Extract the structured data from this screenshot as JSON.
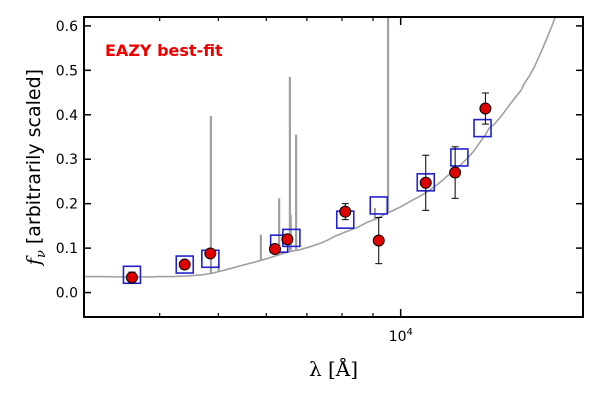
{
  "chart_data": {
    "type": "scatter",
    "title": "",
    "annotation": "EAZY best-fit",
    "annotation_color": "#ee0000",
    "xlabel": "λ [Å]",
    "ylabel_math": "f",
    "ylabel_sub": "ν",
    "ylabel_text": "[arbitrarily scaled]",
    "x_scale": "log",
    "xlim": [
      3000,
      20000
    ],
    "ylim": [
      -0.055,
      0.62
    ],
    "y_ticks": [
      0.0,
      0.1,
      0.2,
      0.3,
      0.4,
      0.5,
      0.6
    ],
    "y_tick_labels": [
      "0.0",
      "0.1",
      "0.2",
      "0.3",
      "0.4",
      "0.5",
      "0.6"
    ],
    "x_major_tick": 10000,
    "x_tick_label_base": "10",
    "x_tick_label_exp": "4",
    "grid": false,
    "series": [
      {
        "kind": "template",
        "color": "#a0a0a0",
        "x": [
          3000,
          3200,
          3500,
          3800,
          4000,
          4200,
          4400,
          4500,
          4700,
          4900,
          5100,
          5300,
          5500,
          5800,
          6000,
          6200,
          6400,
          6600,
          6800,
          7000,
          7200,
          7400,
          7600,
          7800,
          8000,
          8200,
          8500,
          8800,
          9000,
          9200,
          9400,
          9600,
          9800,
          10000,
          10300,
          10600,
          10900,
          11200,
          11500,
          11800,
          12000,
          12300,
          12600,
          12900,
          13200,
          13500,
          13800,
          14000,
          14300,
          14600,
          14900,
          15200,
          15500,
          15800,
          16000,
          16300,
          16600,
          16900,
          17200,
          17500,
          17800,
          18000
        ],
        "y": [
          0.036,
          0.036,
          0.035,
          0.035,
          0.036,
          0.036,
          0.037,
          0.038,
          0.04,
          0.044,
          0.05,
          0.056,
          0.062,
          0.07,
          0.076,
          0.082,
          0.088,
          0.093,
          0.096,
          0.101,
          0.106,
          0.112,
          0.119,
          0.127,
          0.133,
          0.139,
          0.147,
          0.158,
          0.163,
          0.168,
          0.176,
          0.181,
          0.187,
          0.193,
          0.203,
          0.212,
          0.221,
          0.232,
          0.243,
          0.256,
          0.265,
          0.276,
          0.289,
          0.303,
          0.318,
          0.337,
          0.355,
          0.37,
          0.38,
          0.394,
          0.41,
          0.426,
          0.441,
          0.455,
          0.47,
          0.487,
          0.506,
          0.529,
          0.553,
          0.578,
          0.602,
          0.62
        ]
      },
      {
        "kind": "emission-lines",
        "color": "#a0a0a0",
        "x": [
          4860,
          4959,
          5007,
          5877,
          6300,
          6563,
          6583,
          6720,
          9069,
          9532
        ],
        "y": [
          0.397,
          0.045,
          0.062,
          0.13,
          0.212,
          0.485,
          0.175,
          0.355,
          0.19,
          0.62
        ]
      },
      {
        "kind": "model-photometry",
        "color": "#2222cc",
        "x": [
          3600,
          4400,
          4850,
          6300,
          6600,
          8100,
          9200,
          11000,
          12500,
          13650
        ],
        "y": [
          0.04,
          0.063,
          0.076,
          0.11,
          0.123,
          0.164,
          0.196,
          0.248,
          0.304,
          0.37
        ]
      },
      {
        "kind": "observed-photometry",
        "color": "#dd0000",
        "x": [
          3600,
          4400,
          4850,
          6200,
          6500,
          8100,
          9200,
          11000,
          12300,
          13800
        ],
        "y": [
          0.034,
          0.063,
          0.088,
          0.098,
          0.12,
          0.182,
          0.117,
          0.247,
          0.27,
          0.414
        ],
        "yerr": [
          0.012,
          0.01,
          0.01,
          0.008,
          0.008,
          0.018,
          0.052,
          0.062,
          0.058,
          0.035
        ]
      }
    ]
  }
}
